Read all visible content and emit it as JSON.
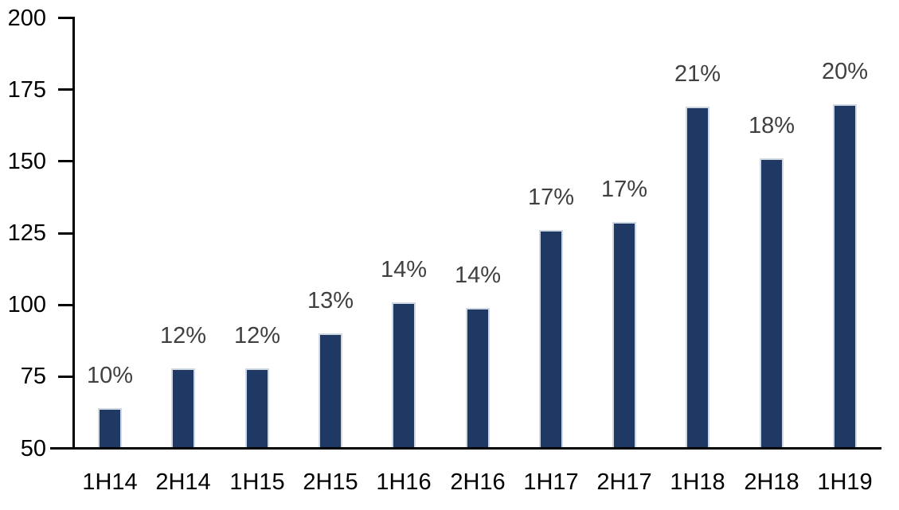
{
  "chart_data": {
    "type": "bar",
    "title": "",
    "xlabel": "",
    "ylabel": "",
    "categories": [
      "1H14",
      "2H14",
      "1H15",
      "2H15",
      "1H16",
      "2H16",
      "1H17",
      "2H17",
      "1H18",
      "2H18",
      "1H19"
    ],
    "values": [
      64,
      78,
      78,
      90,
      101,
      99,
      126,
      129,
      169,
      151,
      170
    ],
    "bar_labels": [
      "10%",
      "12%",
      "12%",
      "13%",
      "14%",
      "14%",
      "17%",
      "17%",
      "21%",
      "18%",
      "20%"
    ],
    "ylim": [
      50,
      200
    ],
    "yticks": [
      50,
      75,
      100,
      125,
      150,
      175,
      200
    ],
    "grid": false,
    "legend": "none",
    "colors": {
      "bar_fill": "#1F3864",
      "bar_border": "#D0D8E4",
      "data_label": "#404040",
      "axis": "#000000",
      "tick_label": "#000000",
      "background": "#FFFFFF"
    }
  }
}
